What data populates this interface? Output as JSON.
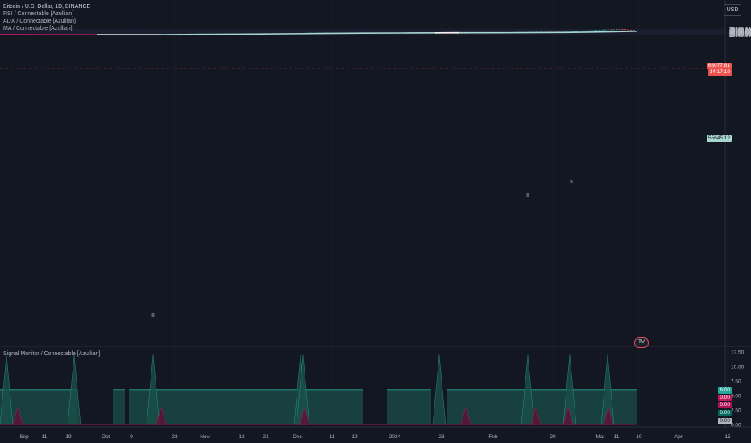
{
  "legend": {
    "symbol": "Bitcoin / U.S. Dollar, 1D, BINANCE",
    "indicators": [
      "RSI / Connectable [Azullian]",
      "ADX / Connectable [Azullian]",
      "MA / Connectable [Azullian]"
    ]
  },
  "currency_button": "USD",
  "price_axis": {
    "ticks": [
      "75000.00",
      "72500.00",
      "70000.00",
      "67500.00",
      "65000.00",
      "62500.00",
      "60000.00",
      "57500.00",
      "55000.00",
      "52500.00",
      "50000.00",
      "47500.00",
      "45000.00",
      "42500.00",
      "40000.00",
      "37500.00",
      "35000.00",
      "32500.00",
      "30000.00",
      "27500.00",
      "25000.00",
      "22500.00"
    ]
  },
  "price_tags": {
    "last_price": "68077.81",
    "countdown": "14:17:19",
    "ma_value": "55645.12"
  },
  "subpane": {
    "title": "Signal Monitor / Connectable [Azullian]",
    "ticks": [
      "12.50",
      "10.00",
      "7.50",
      "5.00",
      "2.50",
      "0.00"
    ],
    "tags": [
      "6.00",
      "0.00",
      "0.00",
      "0.00",
      "0.00"
    ]
  },
  "time_axis": {
    "labels": [
      "Sep",
      "11",
      "19",
      "Oct",
      "9",
      "23",
      "Nov",
      "13",
      "21",
      "Dec",
      "11",
      "19",
      "2024",
      "23",
      "Feb",
      "20",
      "Mar",
      "11",
      "19",
      "Apr",
      "15"
    ]
  },
  "tv_logo": "TV",
  "colors": {
    "background": "#131722",
    "up": "#26a69a",
    "down": "#ef5350",
    "ma_line": "#a7d5d0",
    "ma_red": "#c2185b",
    "signal_fill": "#1b4f48"
  }
}
